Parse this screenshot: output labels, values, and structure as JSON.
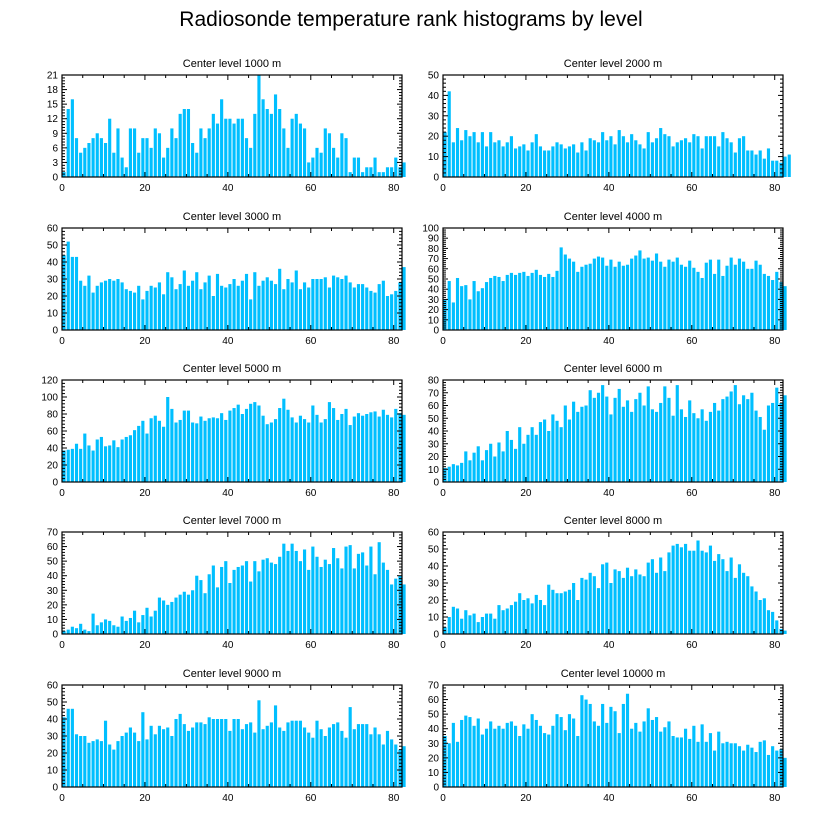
{
  "page": {
    "title": "Radiosonde temperature rank histograms by level"
  },
  "colors": {
    "bar": "#00bfff",
    "axis": "#000000"
  },
  "chart_data": [
    {
      "type": "bar",
      "title": "Center level 1000 m",
      "xlim": [
        0,
        82
      ],
      "ylim": [
        0,
        21
      ],
      "xticks": [
        0,
        20,
        40,
        60,
        80
      ],
      "yticks": [
        0,
        3,
        6,
        9,
        12,
        15,
        18,
        21
      ],
      "values": [
        1,
        14,
        16,
        8,
        5,
        6,
        7,
        8,
        9,
        8,
        7,
        12,
        5,
        10,
        4,
        2,
        10,
        10,
        5,
        8,
        8,
        6,
        10,
        9,
        4,
        6,
        10,
        8,
        13,
        14,
        14,
        7,
        5,
        10,
        8,
        10,
        13,
        11,
        16,
        12,
        12,
        11,
        12,
        12,
        8,
        6,
        13,
        21,
        16,
        14,
        13,
        17,
        14,
        10,
        6,
        12,
        13,
        11,
        10,
        3,
        4,
        6,
        5,
        10,
        9,
        6,
        4,
        9,
        8,
        1,
        4,
        4,
        1,
        2,
        2,
        4,
        1,
        1,
        2,
        2,
        4,
        2,
        3
      ],
      "xlabel": "",
      "ylabel": ""
    },
    {
      "type": "bar",
      "title": "Center level 2000 m",
      "xlim": [
        0,
        82
      ],
      "ylim": [
        0,
        50
      ],
      "xticks": [
        0,
        20,
        40,
        60,
        80
      ],
      "yticks": [
        0,
        10,
        20,
        30,
        40,
        50
      ],
      "values": [
        22,
        42,
        17,
        24,
        18,
        23,
        20,
        22,
        17,
        22,
        15,
        22,
        17,
        18,
        15,
        17,
        20,
        14,
        15,
        16,
        13,
        17,
        21,
        15,
        13,
        13,
        15,
        17,
        16,
        14,
        15,
        16,
        12,
        17,
        13,
        19,
        18,
        17,
        22,
        18,
        20,
        16,
        23,
        20,
        17,
        21,
        18,
        16,
        14,
        22,
        17,
        19,
        24,
        21,
        20,
        15,
        17,
        18,
        19,
        17,
        21,
        20,
        14,
        20,
        20,
        20,
        15,
        22,
        19,
        17,
        12,
        19,
        20,
        13,
        13,
        11,
        13,
        9,
        14,
        8,
        8,
        7,
        10,
        11
      ],
      "xlabel": "",
      "ylabel": ""
    },
    {
      "type": "bar",
      "title": "Center level 3000 m",
      "xlim": [
        0,
        82
      ],
      "ylim": [
        0,
        60
      ],
      "xticks": [
        0,
        20,
        40,
        60,
        80
      ],
      "yticks": [
        0,
        10,
        20,
        30,
        40,
        50,
        60
      ],
      "values": [
        44,
        52,
        43,
        43,
        29,
        26,
        32,
        22,
        26,
        28,
        29,
        30,
        29,
        30,
        28,
        24,
        23,
        22,
        26,
        18,
        23,
        26,
        25,
        28,
        21,
        34,
        31,
        24,
        27,
        35,
        26,
        29,
        34,
        24,
        28,
        32,
        20,
        33,
        26,
        25,
        27,
        30,
        26,
        29,
        33,
        18,
        34,
        26,
        29,
        31,
        29,
        27,
        36,
        24,
        30,
        28,
        35,
        24,
        28,
        25,
        30,
        30,
        30,
        31,
        25,
        32,
        31,
        30,
        32,
        28,
        25,
        27,
        27,
        25,
        23,
        22,
        27,
        29,
        20,
        21,
        23,
        28,
        37
      ],
      "xlabel": "",
      "ylabel": ""
    },
    {
      "type": "bar",
      "title": "Center level 4000 m",
      "xlim": [
        0,
        82
      ],
      "ylim": [
        0,
        100
      ],
      "xticks": [
        0,
        20,
        40,
        60,
        80
      ],
      "yticks": [
        0,
        10,
        20,
        30,
        40,
        50,
        60,
        70,
        80,
        90,
        100
      ],
      "values": [
        30,
        48,
        27,
        51,
        43,
        44,
        30,
        48,
        38,
        41,
        47,
        51,
        53,
        52,
        48,
        54,
        56,
        54,
        56,
        57,
        53,
        56,
        59,
        54,
        52,
        55,
        52,
        58,
        81,
        74,
        70,
        67,
        57,
        62,
        64,
        65,
        70,
        72,
        71,
        63,
        69,
        62,
        67,
        63,
        64,
        70,
        73,
        78,
        70,
        71,
        68,
        75,
        67,
        62,
        69,
        67,
        71,
        64,
        62,
        68,
        61,
        57,
        51,
        66,
        69,
        55,
        69,
        53,
        63,
        71,
        64,
        70,
        67,
        60,
        60,
        68,
        64,
        55,
        53,
        49,
        57,
        47,
        43
      ],
      "xlabel": "",
      "ylabel": ""
    },
    {
      "type": "bar",
      "title": "Center level 5000 m",
      "xlim": [
        0,
        82
      ],
      "ylim": [
        0,
        120
      ],
      "xticks": [
        0,
        20,
        40,
        60,
        80
      ],
      "yticks": [
        0,
        20,
        40,
        60,
        80,
        100,
        120
      ],
      "values": [
        37,
        38,
        39,
        45,
        39,
        57,
        43,
        37,
        50,
        53,
        42,
        43,
        49,
        41,
        50,
        53,
        55,
        61,
        66,
        72,
        57,
        75,
        78,
        72,
        65,
        100,
        86,
        70,
        73,
        84,
        84,
        70,
        69,
        77,
        72,
        75,
        76,
        75,
        81,
        73,
        84,
        87,
        91,
        80,
        86,
        92,
        94,
        90,
        78,
        68,
        70,
        74,
        87,
        98,
        85,
        76,
        70,
        78,
        74,
        70,
        90,
        79,
        70,
        74,
        94,
        87,
        73,
        80,
        86,
        67,
        77,
        81,
        78,
        80,
        82,
        83,
        77,
        85,
        79,
        76,
        86,
        81,
        79
      ],
      "xlabel": "",
      "ylabel": ""
    },
    {
      "type": "bar",
      "title": "Center level 6000 m",
      "xlim": [
        0,
        82
      ],
      "ylim": [
        0,
        80
      ],
      "xticks": [
        0,
        20,
        40,
        60,
        80
      ],
      "yticks": [
        0,
        10,
        20,
        30,
        40,
        50,
        60,
        70,
        80
      ],
      "values": [
        11,
        12,
        14,
        13,
        15,
        24,
        17,
        23,
        28,
        17,
        25,
        30,
        20,
        31,
        24,
        40,
        33,
        26,
        43,
        30,
        37,
        43,
        37,
        47,
        49,
        40,
        53,
        48,
        43,
        60,
        49,
        63,
        55,
        59,
        60,
        72,
        66,
        70,
        76,
        67,
        53,
        66,
        73,
        59,
        64,
        55,
        65,
        70,
        60,
        75,
        57,
        55,
        62,
        75,
        66,
        52,
        76,
        57,
        51,
        64,
        54,
        50,
        57,
        48,
        55,
        62,
        56,
        65,
        67,
        71,
        76,
        61,
        68,
        65,
        70,
        56,
        51,
        41,
        60,
        62,
        74,
        62,
        68
      ],
      "xlabel": "",
      "ylabel": ""
    },
    {
      "type": "bar",
      "title": "Center level 7000 m",
      "xlim": [
        0,
        82
      ],
      "ylim": [
        0,
        70
      ],
      "xticks": [
        0,
        20,
        40,
        60,
        80
      ],
      "yticks": [
        0,
        10,
        20,
        30,
        40,
        50,
        60,
        70
      ],
      "values": [
        2,
        3,
        5,
        4,
        7,
        3,
        2,
        14,
        6,
        8,
        10,
        9,
        6,
        5,
        12,
        9,
        11,
        16,
        8,
        13,
        18,
        12,
        16,
        25,
        23,
        20,
        22,
        25,
        27,
        29,
        27,
        30,
        40,
        37,
        28,
        41,
        47,
        32,
        46,
        50,
        35,
        44,
        46,
        47,
        50,
        36,
        50,
        43,
        51,
        52,
        49,
        48,
        53,
        62,
        57,
        62,
        57,
        50,
        58,
        44,
        60,
        53,
        46,
        51,
        48,
        59,
        52,
        45,
        60,
        61,
        45,
        55,
        56,
        47,
        60,
        41,
        63,
        49,
        44,
        34,
        38,
        40,
        34
      ],
      "xlabel": "",
      "ylabel": ""
    },
    {
      "type": "bar",
      "title": "Center level 8000 m",
      "xlim": [
        0,
        82
      ],
      "ylim": [
        0,
        60
      ],
      "xticks": [
        0,
        20,
        40,
        60,
        80
      ],
      "yticks": [
        0,
        10,
        20,
        30,
        40,
        50,
        60
      ],
      "values": [
        4,
        10,
        16,
        15,
        9,
        14,
        11,
        12,
        7,
        10,
        12,
        12,
        9,
        17,
        14,
        15,
        17,
        19,
        24,
        20,
        21,
        18,
        23,
        20,
        17,
        29,
        26,
        24,
        24,
        25,
        26,
        30,
        20,
        33,
        32,
        36,
        34,
        27,
        41,
        42,
        30,
        38,
        37,
        33,
        39,
        34,
        38,
        35,
        34,
        42,
        44,
        36,
        45,
        37,
        48,
        52,
        53,
        51,
        53,
        49,
        49,
        55,
        49,
        48,
        52,
        43,
        47,
        44,
        37,
        45,
        33,
        41,
        36,
        34,
        28,
        25,
        20,
        21,
        14,
        13,
        8,
        3,
        2
      ],
      "xlabel": "",
      "ylabel": ""
    },
    {
      "type": "bar",
      "title": "Center level 9000 m",
      "xlim": [
        0,
        82
      ],
      "ylim": [
        0,
        60
      ],
      "xticks": [
        0,
        20,
        40,
        60,
        80
      ],
      "yticks": [
        0,
        10,
        20,
        30,
        40,
        50,
        60
      ],
      "values": [
        41,
        46,
        46,
        31,
        30,
        30,
        26,
        27,
        28,
        27,
        39,
        25,
        22,
        27,
        30,
        32,
        35,
        32,
        27,
        44,
        28,
        36,
        31,
        36,
        34,
        35,
        30,
        40,
        43,
        37,
        33,
        35,
        38,
        38,
        37,
        41,
        40,
        40,
        40,
        40,
        33,
        40,
        40,
        34,
        37,
        38,
        32,
        51,
        34,
        36,
        38,
        48,
        35,
        33,
        38,
        39,
        39,
        39,
        35,
        32,
        29,
        39,
        34,
        30,
        35,
        37,
        38,
        33,
        29,
        47,
        34,
        37,
        37,
        37,
        31,
        35,
        31,
        25,
        33,
        28,
        25,
        22,
        24
      ],
      "xlabel": "",
      "ylabel": ""
    },
    {
      "type": "bar",
      "title": "Center level 10000 m",
      "xlim": [
        0,
        82
      ],
      "ylim": [
        0,
        70
      ],
      "xticks": [
        0,
        20,
        40,
        60,
        80
      ],
      "yticks": [
        0,
        10,
        20,
        30,
        40,
        50,
        60,
        70
      ],
      "values": [
        35,
        30,
        44,
        31,
        46,
        49,
        48,
        42,
        47,
        36,
        40,
        45,
        40,
        42,
        40,
        44,
        45,
        42,
        35,
        43,
        40,
        50,
        46,
        42,
        37,
        36,
        42,
        50,
        48,
        39,
        50,
        47,
        35,
        63,
        60,
        57,
        45,
        42,
        57,
        44,
        55,
        52,
        37,
        57,
        64,
        40,
        44,
        38,
        45,
        54,
        46,
        48,
        38,
        41,
        45,
        35,
        34,
        34,
        40,
        33,
        42,
        31,
        43,
        31,
        37,
        25,
        38,
        30,
        31,
        30,
        30,
        28,
        25,
        29,
        27,
        24,
        31,
        32,
        22,
        28,
        25,
        26,
        20
      ],
      "xlabel": "",
      "ylabel": ""
    }
  ]
}
